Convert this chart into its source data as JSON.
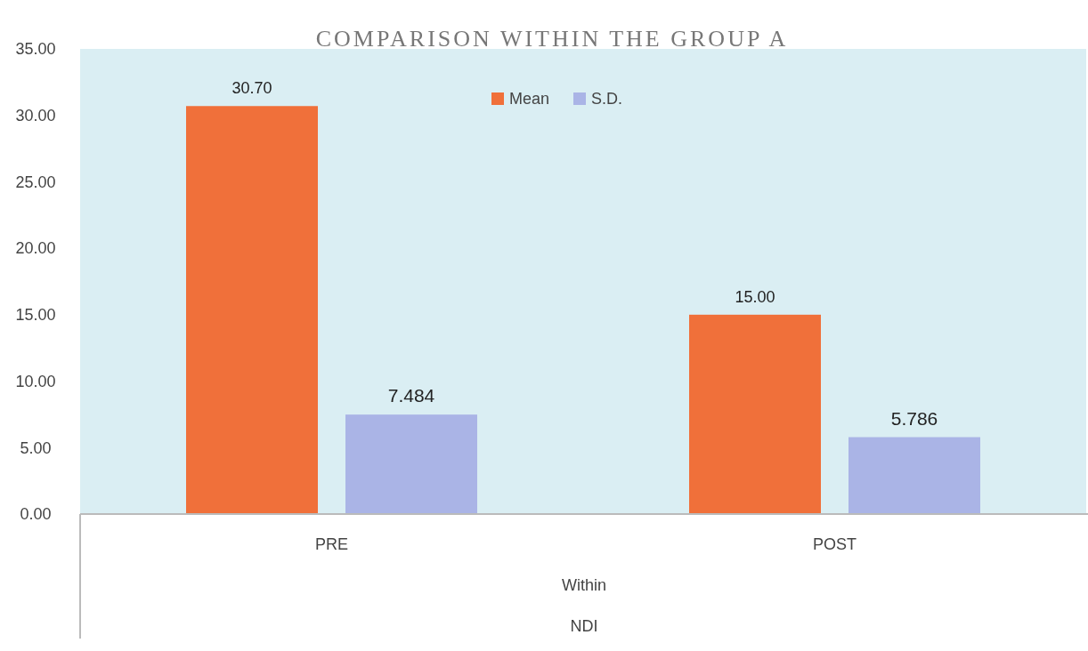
{
  "chart_data": {
    "type": "bar",
    "title": "COMPARISON WITHIN THE GROUP A",
    "xlabel": "Within",
    "annotations": [
      "NDI"
    ],
    "categories": [
      "PRE",
      "POST"
    ],
    "series": [
      {
        "name": "Mean",
        "color": "#f0703a",
        "values": [
          30.7,
          15.0
        ],
        "value_labels": [
          "30.70",
          "15.00"
        ]
      },
      {
        "name": "S.D.",
        "color": "#aab4e6",
        "values": [
          7.484,
          5.786
        ],
        "value_labels": [
          "7.484",
          "5.786"
        ]
      }
    ],
    "ylim": [
      0,
      35
    ],
    "yticks": [
      {
        "value": 0,
        "label": "0.00"
      },
      {
        "value": 5,
        "label": "5.00"
      },
      {
        "value": 10,
        "label": "10.00"
      },
      {
        "value": 15,
        "label": "15.00"
      },
      {
        "value": 20,
        "label": "20.00"
      },
      {
        "value": 25,
        "label": "25.00"
      },
      {
        "value": 30,
        "label": "30.00"
      },
      {
        "value": 35,
        "label": "35.00"
      }
    ],
    "grid": false,
    "legend": "top"
  }
}
